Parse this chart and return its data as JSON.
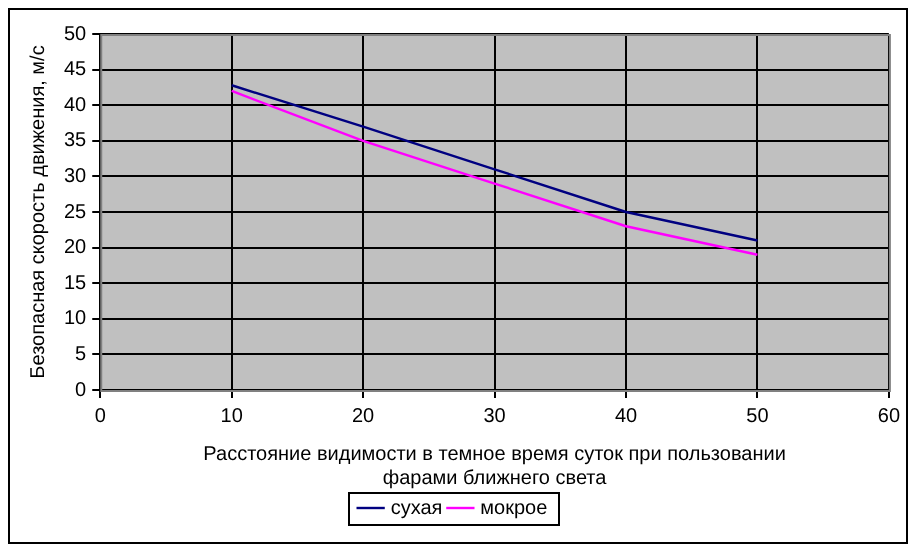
{
  "chart_data": {
    "type": "line",
    "xlabel": "Расстояние видимости в темное время суток при пользовании фарами ближнего света",
    "ylabel": "Безопасная скорость движения, м/с",
    "x": [
      10,
      20,
      30,
      40,
      50
    ],
    "series": [
      {
        "name": "сухая",
        "color": "#000080",
        "values": [
          42.8,
          37,
          31,
          25,
          21
        ]
      },
      {
        "name": "мокрое",
        "color": "#ff00ff",
        "values": [
          42,
          35,
          29,
          23,
          19
        ]
      }
    ],
    "xlim": [
      0,
      60
    ],
    "xticks": [
      0,
      10,
      20,
      30,
      40,
      50,
      60
    ],
    "ylim": [
      0,
      50
    ],
    "yticks": [
      0,
      5,
      10,
      15,
      20,
      25,
      30,
      35,
      40,
      45,
      50
    ],
    "grid": true,
    "legend": "bottom",
    "marker": "none",
    "line_style": "solid"
  }
}
